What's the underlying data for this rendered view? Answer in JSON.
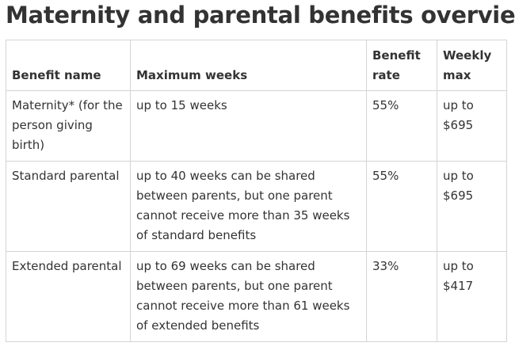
{
  "page": {
    "title": "Maternity and parental benefits overview"
  },
  "table": {
    "headers": {
      "benefit_name": "Benefit name",
      "maximum_weeks": "Maximum weeks",
      "benefit_rate": "Benefit rate",
      "weekly_max": "Weekly max"
    },
    "rows": [
      {
        "benefit_name": "Maternity* (for the person giving birth)",
        "maximum_weeks": "up to 15 weeks",
        "benefit_rate": "55%",
        "weekly_max": "up to $695"
      },
      {
        "benefit_name": "Standard parental",
        "maximum_weeks": "up to 40 weeks can be shared between parents, but one parent cannot receive more than 35 weeks of standard benefits",
        "benefit_rate": "55%",
        "weekly_max": "up to $695"
      },
      {
        "benefit_name": "Extended parental",
        "maximum_weeks": "up to 69 weeks can be shared between parents, but one parent cannot receive more than 61 weeks of extended benefits",
        "benefit_rate": "33%",
        "weekly_max": "up to $417"
      }
    ]
  },
  "colors": {
    "text": "#333333",
    "border": "#d4d4d4",
    "background": "#ffffff"
  }
}
